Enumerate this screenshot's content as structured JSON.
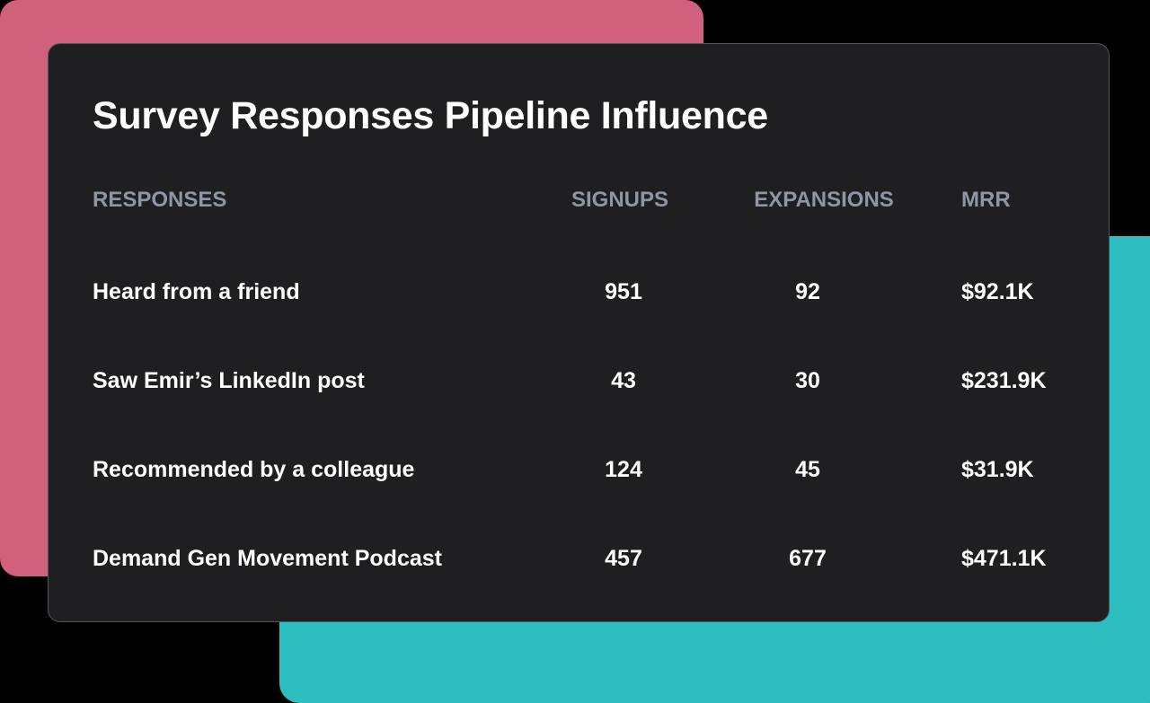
{
  "title": "Survey Responses Pipeline Influence",
  "columns": [
    "RESPONSES",
    "SIGNUPS",
    "EXPANSIONS",
    "MRR"
  ],
  "rows": [
    [
      "Heard from a friend",
      "951",
      "92",
      "$92.1K"
    ],
    [
      "Saw Emir’s LinkedIn post",
      "43",
      "30",
      "$231.9K"
    ],
    [
      "Recommended by a colleague",
      "124",
      "45",
      "$31.9K"
    ],
    [
      "Demand Gen Movement Podcast",
      "457",
      "677",
      "$471.1K"
    ]
  ],
  "colors": {
    "pink": "#d0607c",
    "teal": "#2dbfbf",
    "card": "#1f1f21"
  }
}
